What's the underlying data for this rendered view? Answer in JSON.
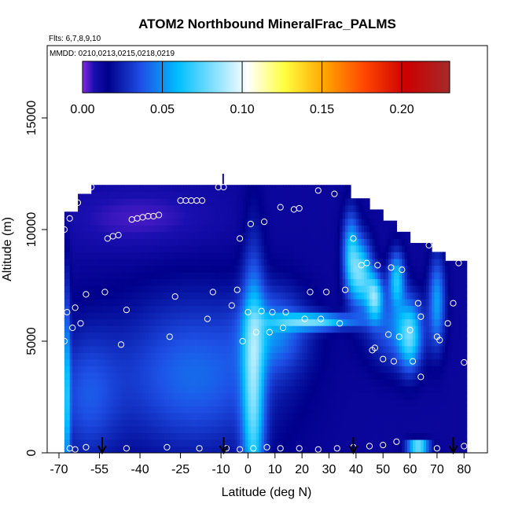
{
  "chart_data": {
    "type": "heatmap",
    "title": "ATOM2 Northbound MineralFrac_PALMS",
    "annotations": [
      "Flts: 6,7,8,9,10",
      "MMDD: 0210,0213,0215,0218,0219"
    ],
    "xlabel": "Latitude (deg N)",
    "ylabel": "Altitude (m)",
    "xlim": [
      -70,
      85
    ],
    "ylim": [
      0,
      17500
    ],
    "x_ticks": [
      -70,
      -55,
      -40,
      -25,
      -10,
      0,
      10,
      20,
      30,
      40,
      50,
      60,
      70,
      80
    ],
    "x_tick_labels": [
      "-70",
      "-55",
      "-40",
      "-25",
      "-10",
      "0",
      "10",
      "20",
      "30",
      "40",
      "50",
      "60",
      "70",
      "80"
    ],
    "y_ticks": [
      0,
      5000,
      10000,
      15000
    ],
    "y_tick_labels": [
      "0",
      "5000",
      "10000",
      "15000"
    ],
    "colorbar": {
      "range": [
        0,
        0.23
      ],
      "ticks": [
        0.0,
        0.05,
        0.1,
        0.15,
        0.2
      ],
      "tick_labels": [
        "0.00",
        "0.05",
        "0.10",
        "0.15",
        "0.20"
      ],
      "colors": [
        "#8a2be2",
        "#1a0fb0",
        "#00008b",
        "#1e50e6",
        "#00bfff",
        "#ffffff",
        "#ffff40",
        "#ffa500",
        "#ff4500",
        "#cc0000",
        "#a52a2a"
      ]
    },
    "profile_markers_lat": [
      -54,
      -9,
      39,
      76
    ],
    "sample_points": [
      {
        "x": -68,
        "y": 10000
      },
      {
        "x": -67,
        "y": 6300
      },
      {
        "x": -68,
        "y": 5000
      },
      {
        "x": -66,
        "y": 10500
      },
      {
        "x": -65,
        "y": 5600
      },
      {
        "x": -64,
        "y": 6500
      },
      {
        "x": -62,
        "y": 5800
      },
      {
        "x": -60,
        "y": 7100
      },
      {
        "x": -63,
        "y": 11200
      },
      {
        "x": -58,
        "y": 11900
      },
      {
        "x": -60,
        "y": 11800
      },
      {
        "x": -52,
        "y": 9600
      },
      {
        "x": -50,
        "y": 9700
      },
      {
        "x": -48,
        "y": 9750
      },
      {
        "x": -53,
        "y": 7200
      },
      {
        "x": -45,
        "y": 6400
      },
      {
        "x": -47,
        "y": 4850
      },
      {
        "x": -43,
        "y": 10450
      },
      {
        "x": -41,
        "y": 10500
      },
      {
        "x": -39,
        "y": 10550
      },
      {
        "x": -37,
        "y": 10600
      },
      {
        "x": -35,
        "y": 10600
      },
      {
        "x": -33,
        "y": 10650
      },
      {
        "x": -29,
        "y": 5200
      },
      {
        "x": -27,
        "y": 7000
      },
      {
        "x": -25,
        "y": 11300
      },
      {
        "x": -23,
        "y": 11300
      },
      {
        "x": -21,
        "y": 11300
      },
      {
        "x": -19,
        "y": 11300
      },
      {
        "x": -17,
        "y": 11300
      },
      {
        "x": -15,
        "y": 6000
      },
      {
        "x": -13,
        "y": 7200
      },
      {
        "x": -11,
        "y": 11900
      },
      {
        "x": -9,
        "y": 11900
      },
      {
        "x": -6,
        "y": 6600
      },
      {
        "x": -4,
        "y": 7300
      },
      {
        "x": -3,
        "y": 9600
      },
      {
        "x": -2,
        "y": 5000
      },
      {
        "x": 0,
        "y": 6300
      },
      {
        "x": 1,
        "y": 10250
      },
      {
        "x": 3,
        "y": 5400
      },
      {
        "x": 5,
        "y": 6350
      },
      {
        "x": 6,
        "y": 10350
      },
      {
        "x": 8,
        "y": 5400
      },
      {
        "x": 9,
        "y": 6300
      },
      {
        "x": 12,
        "y": 11000
      },
      {
        "x": 13,
        "y": 5600
      },
      {
        "x": 14,
        "y": 6300
      },
      {
        "x": 17,
        "y": 10900
      },
      {
        "x": 19,
        "y": 10950
      },
      {
        "x": 21,
        "y": 6000
      },
      {
        "x": 23,
        "y": 7200
      },
      {
        "x": 26,
        "y": 11750
      },
      {
        "x": 27,
        "y": 6000
      },
      {
        "x": 29,
        "y": 7200
      },
      {
        "x": 32,
        "y": 11600
      },
      {
        "x": 34,
        "y": 5800
      },
      {
        "x": 36,
        "y": 7300
      },
      {
        "x": 39,
        "y": 9600
      },
      {
        "x": 42,
        "y": 8400
      },
      {
        "x": 44,
        "y": 8500
      },
      {
        "x": 46,
        "y": 4600
      },
      {
        "x": 47,
        "y": 4700
      },
      {
        "x": 48,
        "y": 8400
      },
      {
        "x": 50,
        "y": 4200
      },
      {
        "x": 52,
        "y": 5300
      },
      {
        "x": 53,
        "y": 8300
      },
      {
        "x": 54,
        "y": 4100
      },
      {
        "x": 56,
        "y": 5200
      },
      {
        "x": 57,
        "y": 8200
      },
      {
        "x": 60,
        "y": 5500
      },
      {
        "x": 61,
        "y": 4100
      },
      {
        "x": 63,
        "y": 6700
      },
      {
        "x": 64,
        "y": 6100
      },
      {
        "x": 64,
        "y": 3400
      },
      {
        "x": 67,
        "y": 9300
      },
      {
        "x": 70,
        "y": 5200
      },
      {
        "x": 71,
        "y": 5050
      },
      {
        "x": 74,
        "y": 5800
      },
      {
        "x": 76,
        "y": 6700
      },
      {
        "x": 78,
        "y": 8500
      },
      {
        "x": 80,
        "y": 4050
      },
      {
        "x": -66,
        "y": 200
      },
      {
        "x": -64,
        "y": 150
      },
      {
        "x": -60,
        "y": 250
      },
      {
        "x": -45,
        "y": 200
      },
      {
        "x": -30,
        "y": 250
      },
      {
        "x": -18,
        "y": 200
      },
      {
        "x": -8,
        "y": 200
      },
      {
        "x": -3,
        "y": 150
      },
      {
        "x": 2,
        "y": 200
      },
      {
        "x": 7,
        "y": 250
      },
      {
        "x": 12,
        "y": 200
      },
      {
        "x": 19,
        "y": 200
      },
      {
        "x": 26,
        "y": 150
      },
      {
        "x": 33,
        "y": 200
      },
      {
        "x": 39,
        "y": 250
      },
      {
        "x": 45,
        "y": 300
      },
      {
        "x": 50,
        "y": 350
      },
      {
        "x": 55,
        "y": 500
      },
      {
        "x": 70,
        "y": 200
      },
      {
        "x": 80,
        "y": 300
      }
    ]
  }
}
